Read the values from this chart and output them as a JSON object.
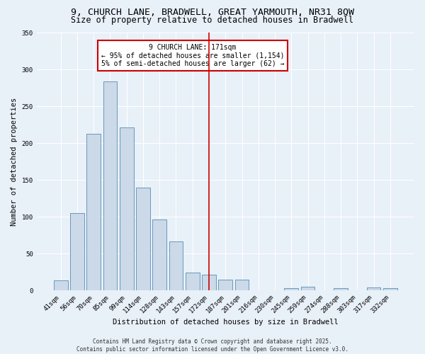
{
  "title1": "9, CHURCH LANE, BRADWELL, GREAT YARMOUTH, NR31 8QW",
  "title2": "Size of property relative to detached houses in Bradwell",
  "xlabel": "Distribution of detached houses by size in Bradwell",
  "ylabel": "Number of detached properties",
  "bar_labels": [
    "41sqm",
    "56sqm",
    "70sqm",
    "85sqm",
    "99sqm",
    "114sqm",
    "128sqm",
    "143sqm",
    "157sqm",
    "172sqm",
    "187sqm",
    "201sqm",
    "216sqm",
    "230sqm",
    "245sqm",
    "259sqm",
    "274sqm",
    "288sqm",
    "303sqm",
    "317sqm",
    "332sqm"
  ],
  "bar_values": [
    14,
    105,
    213,
    284,
    221,
    140,
    96,
    67,
    24,
    22,
    15,
    15,
    0,
    0,
    3,
    5,
    0,
    3,
    0,
    4,
    3
  ],
  "bar_color": "#ccd9e8",
  "bar_edgecolor": "#6699bb",
  "vline_index": 9,
  "vline_color": "#cc0000",
  "annotation_text": "9 CHURCH LANE: 171sqm\n← 95% of detached houses are smaller (1,154)\n5% of semi-detached houses are larger (62) →",
  "annotation_box_edgecolor": "#cc0000",
  "ylim": [
    0,
    350
  ],
  "yticks": [
    0,
    50,
    100,
    150,
    200,
    250,
    300,
    350
  ],
  "footnote": "Contains HM Land Registry data © Crown copyright and database right 2025.\nContains public sector information licensed under the Open Government Licence v3.0.",
  "bg_color": "#e8f0f8",
  "title_fontsize": 9.5,
  "subtitle_fontsize": 8.5,
  "axis_label_fontsize": 7.5,
  "tick_fontsize": 6.5,
  "annotation_fontsize": 7,
  "footnote_fontsize": 5.5
}
